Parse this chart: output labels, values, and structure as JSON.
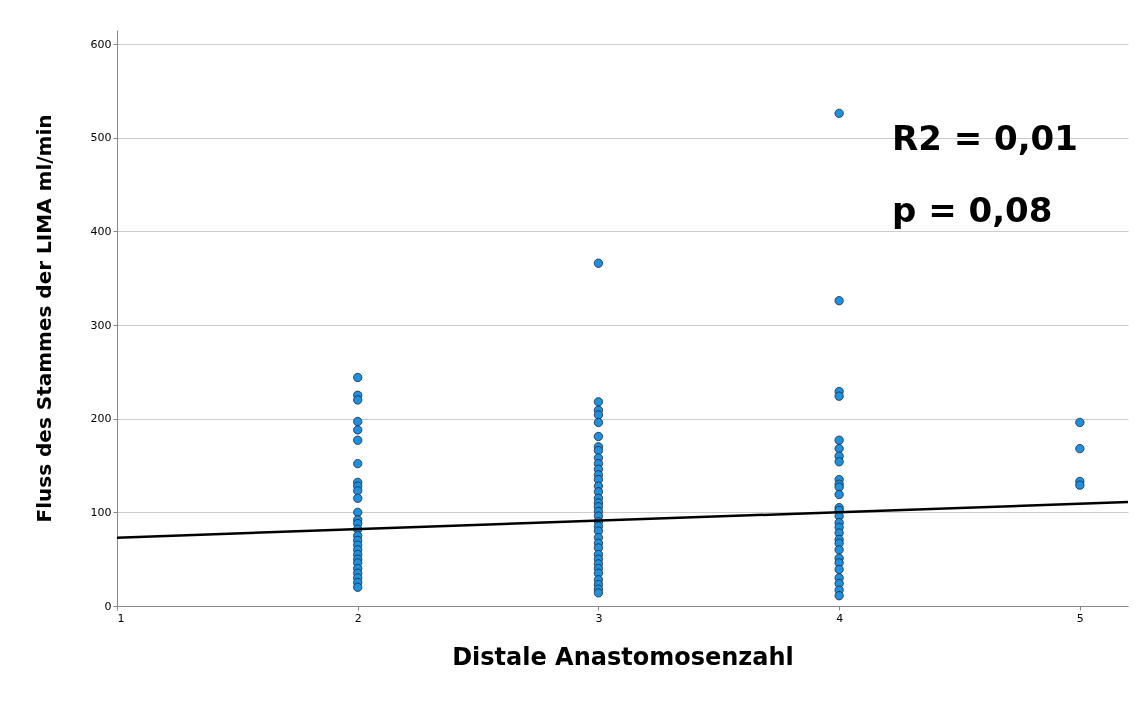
{
  "chart_data": {
    "type": "scatter",
    "xlabel": "Distale Anastomosenzahl",
    "ylabel": "Fluss des Stammes der LIMA ml/min",
    "xlim": [
      1,
      5.2
    ],
    "ylim": [
      0,
      615
    ],
    "xticks": [
      1,
      2,
      3,
      4,
      5
    ],
    "yticks": [
      0,
      100,
      200,
      300,
      400,
      500,
      600
    ],
    "grid": "y",
    "annotations": [
      "R2 = 0,01",
      "p = 0,08"
    ],
    "series": [
      {
        "marker": "circle",
        "color": "#1f8fe0",
        "x": [
          2,
          2,
          2,
          2,
          2,
          2,
          2,
          2,
          2,
          2,
          2,
          2,
          2,
          2,
          2,
          2,
          2,
          2,
          2,
          2,
          2,
          2,
          2,
          2,
          2,
          2,
          2,
          3,
          3,
          3,
          3,
          3,
          3,
          3,
          3,
          3,
          3,
          3,
          3,
          3,
          3,
          3,
          3,
          3,
          3,
          3,
          3,
          3,
          3,
          3,
          3,
          3,
          3,
          3,
          3,
          3,
          3,
          3,
          3,
          3,
          3,
          3,
          4,
          4,
          4,
          4,
          4,
          4,
          4,
          4,
          4,
          4,
          4,
          4,
          4,
          4,
          4,
          4,
          4,
          4,
          4,
          4,
          4,
          4,
          4,
          4,
          4,
          4,
          4,
          4,
          5,
          5,
          5,
          5
        ],
        "values": [
          244,
          225,
          220,
          197,
          188,
          177,
          152,
          132,
          128,
          123,
          115,
          100,
          92,
          88,
          82,
          75,
          70,
          65,
          60,
          55,
          50,
          46,
          40,
          35,
          30,
          25,
          20,
          366,
          218,
          209,
          204,
          196,
          181,
          170,
          166,
          158,
          152,
          146,
          140,
          135,
          128,
          122,
          115,
          110,
          106,
          101,
          96,
          90,
          85,
          80,
          73,
          67,
          62,
          55,
          50,
          45,
          40,
          35,
          28,
          23,
          18,
          14,
          526,
          326,
          229,
          224,
          177,
          168,
          160,
          154,
          135,
          130,
          127,
          119,
          105,
          102,
          96,
          89,
          84,
          78,
          71,
          67,
          60,
          51,
          46,
          39,
          30,
          24,
          17,
          11,
          196,
          168,
          133,
          129
        ]
      },
      {
        "type": "line",
        "marker": "none",
        "color": "#000000",
        "x": [
          1,
          5.2
        ],
        "values": [
          73,
          111
        ]
      }
    ]
  }
}
